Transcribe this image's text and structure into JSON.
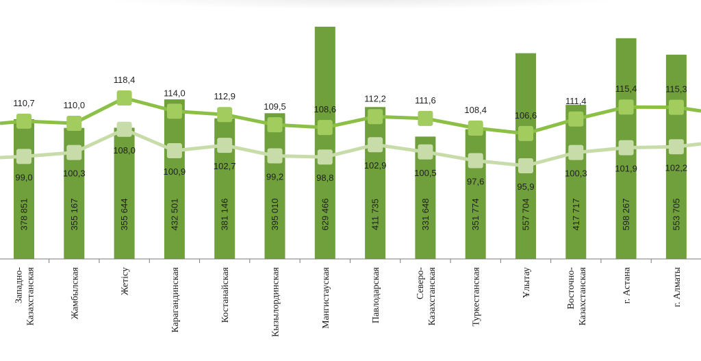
{
  "chart_data": {
    "type": "bar",
    "categories": [
      [
        "Западно-",
        "Казахстанская"
      ],
      [
        "Жамбылская"
      ],
      [
        "Жетісу"
      ],
      [
        "Карагандинская"
      ],
      [
        "Костанайская"
      ],
      [
        "Кызылординская"
      ],
      [
        "Мангистауская"
      ],
      [
        "Павлодарская"
      ],
      [
        "Северо-",
        "Казахстанская"
      ],
      [
        "Туркестанская"
      ],
      [
        "Ұлытау"
      ],
      [
        "Восточно-",
        "Казахстанская"
      ],
      [
        "г. Астана"
      ],
      [
        "г. Алматы"
      ]
    ],
    "series": [
      {
        "kind": "bar",
        "color": "#70a03c",
        "values": [
          378851,
          355167,
          355644,
          432501,
          381146,
          395010,
          629466,
          411735,
          331648,
          351774,
          557704,
          417717,
          598267,
          553705
        ],
        "labels": [
          "378 851",
          "355 167",
          "355 644",
          "432 501",
          "381 146",
          "395 010",
          "629 466",
          "411 735",
          "331 648",
          "351 774",
          "557 704",
          "417 717",
          "598 267",
          "553 705"
        ]
      },
      {
        "kind": "line",
        "color": "#8cbf46",
        "values": [
          110.7,
          110.0,
          118.4,
          114.0,
          112.9,
          109.5,
          108.6,
          112.2,
          111.6,
          108.4,
          106.6,
          111.4,
          115.4,
          115.3
        ],
        "labels": [
          "110,7",
          "110,0",
          "118,4",
          "114,0",
          "112,9",
          "109,5",
          "108,6",
          "112,2",
          "111,6",
          "108,4",
          "106,6",
          "111,4",
          "115,4",
          "115,3"
        ]
      },
      {
        "kind": "line",
        "color": "#c8dcaa",
        "values": [
          99.0,
          100.3,
          108.0,
          100.9,
          102.7,
          99.2,
          98.8,
          102.9,
          100.5,
          97.6,
          95.9,
          100.3,
          101.9,
          102.2
        ],
        "labels": [
          "99,0",
          "100,3",
          "108,0",
          "100,9",
          "102,7",
          "99,2",
          "98,8",
          "102,9",
          "100,5",
          "97,6",
          "95,9",
          "100,3",
          "101,9",
          "102,2"
        ]
      }
    ]
  }
}
